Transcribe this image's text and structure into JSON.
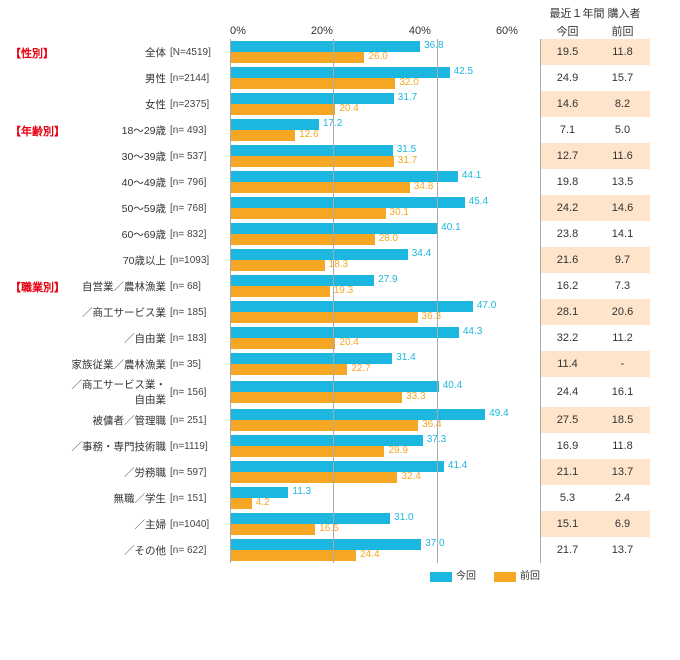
{
  "chart": {
    "type": "grouped-horizontal-bar",
    "x_max": 60,
    "x_ticks": [
      "0%",
      "20%",
      "40%",
      "60%"
    ],
    "colors": {
      "now": "#1cb7e0",
      "prev": "#f5a623",
      "highlight_bg": "#fde4ca",
      "grid": "#aaaaaa",
      "category": "#e60012"
    },
    "legend": {
      "now": "今回",
      "prev": "前回"
    },
    "side_header": "最近１年間\n購入者",
    "side_sub": {
      "now": "今回",
      "prev": "前回"
    },
    "categories": [
      {
        "name": "【性別】",
        "start": 0
      },
      {
        "name": "【年齢別】",
        "start": 3
      },
      {
        "name": "【職業別】",
        "start": 9
      }
    ],
    "rows": [
      {
        "label": "全体",
        "n": "[N=4519]",
        "now": 36.8,
        "prev": 26.0,
        "side_now": "19.5",
        "side_prev": "11.8",
        "alt": true
      },
      {
        "label": "男性",
        "n": "[n=2144]",
        "now": 42.5,
        "prev": 32.0,
        "side_now": "24.9",
        "side_prev": "15.7",
        "alt": false
      },
      {
        "label": "女性",
        "n": "[n=2375]",
        "now": 31.7,
        "prev": 20.4,
        "side_now": "14.6",
        "side_prev": "8.2",
        "alt": true
      },
      {
        "label": "18～29歳",
        "n": "[n=  493]",
        "now": 17.2,
        "prev": 12.6,
        "side_now": "7.1",
        "side_prev": "5.0",
        "alt": false
      },
      {
        "label": "30～39歳",
        "n": "[n=  537]",
        "now": 31.5,
        "prev": 31.7,
        "side_now": "12.7",
        "side_prev": "11.6",
        "alt": true
      },
      {
        "label": "40～49歳",
        "n": "[n=  796]",
        "now": 44.1,
        "prev": 34.8,
        "side_now": "19.8",
        "side_prev": "13.5",
        "alt": false
      },
      {
        "label": "50～59歳",
        "n": "[n=  768]",
        "now": 45.4,
        "prev": 30.1,
        "side_now": "24.2",
        "side_prev": "14.6",
        "alt": true
      },
      {
        "label": "60～69歳",
        "n": "[n=  832]",
        "now": 40.1,
        "prev": 28.0,
        "side_now": "23.8",
        "side_prev": "14.1",
        "alt": false
      },
      {
        "label": "70歳以上",
        "n": "[n=1093]",
        "now": 34.4,
        "prev": 18.3,
        "side_now": "21.6",
        "side_prev": "9.7",
        "alt": true
      },
      {
        "label": "自営業／農林漁業",
        "n": "[n=    68]",
        "now": 27.9,
        "prev": 19.3,
        "side_now": "16.2",
        "side_prev": "7.3",
        "alt": false
      },
      {
        "label": "／商工サービス業",
        "n": "[n=  185]",
        "now": 47.0,
        "prev": 36.3,
        "side_now": "28.1",
        "side_prev": "20.6",
        "alt": true
      },
      {
        "label": "／自由業",
        "n": "[n=  183]",
        "now": 44.3,
        "prev": 20.4,
        "side_now": "32.2",
        "side_prev": "11.2",
        "alt": false
      },
      {
        "label": "家族従業／農林漁業",
        "n": "[n=    35]",
        "now": 31.4,
        "prev": 22.7,
        "side_now": "11.4",
        "side_prev": "-",
        "alt": true
      },
      {
        "label": "／商工サービス業・自由業",
        "n": "[n=  156]",
        "now": 40.4,
        "prev": 33.3,
        "side_now": "24.4",
        "side_prev": "16.1",
        "alt": false
      },
      {
        "label": "被傭者／管理職",
        "n": "[n=  251]",
        "now": 49.4,
        "prev": 36.4,
        "side_now": "27.5",
        "side_prev": "18.5",
        "alt": true
      },
      {
        "label": "／事務・専門技術職",
        "n": "[n=1119]",
        "now": 37.3,
        "prev": 29.9,
        "side_now": "16.9",
        "side_prev": "11.8",
        "alt": false
      },
      {
        "label": "／労務職",
        "n": "[n=  597]",
        "now": 41.4,
        "prev": 32.4,
        "side_now": "21.1",
        "side_prev": "13.7",
        "alt": true
      },
      {
        "label": "無職／学生",
        "n": "[n=  151]",
        "now": 11.3,
        "prev": 4.2,
        "side_now": "5.3",
        "side_prev": "2.4",
        "alt": false
      },
      {
        "label": "／主婦",
        "n": "[n=1040]",
        "now": 31.0,
        "prev": 16.5,
        "side_now": "15.1",
        "side_prev": "6.9",
        "alt": true
      },
      {
        "label": "／その他",
        "n": "[n=  622]",
        "now": 37.0,
        "prev": 24.4,
        "side_now": "21.7",
        "side_prev": "13.7",
        "alt": false
      }
    ]
  }
}
